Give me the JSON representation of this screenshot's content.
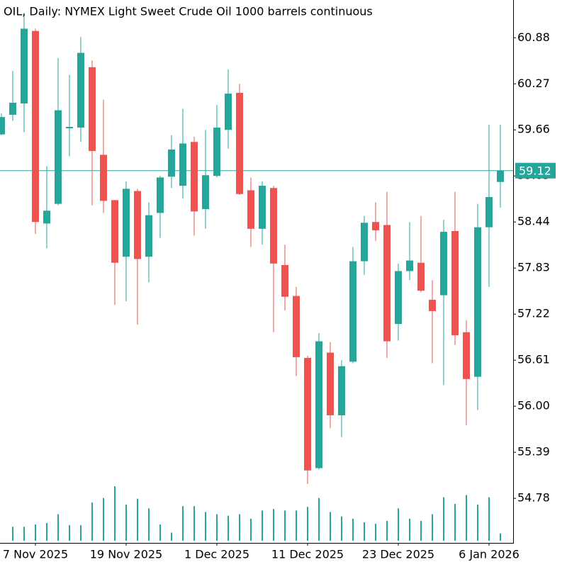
{
  "chart_data": {
    "type": "candlestick",
    "title": "OIL, Daily:  NYMEX Light Sweet Crude Oil 1000 barrels continuous",
    "categories": [
      null,
      null,
      null,
      "7 Nov 2025",
      null,
      null,
      null,
      null,
      null,
      null,
      null,
      "19 Nov 2025",
      null,
      null,
      null,
      null,
      null,
      null,
      null,
      "1 Dec 2025",
      null,
      null,
      null,
      null,
      null,
      null,
      null,
      "11 Dec 2025",
      null,
      null,
      null,
      null,
      null,
      null,
      null,
      "23 Dec 2025",
      null,
      null,
      null,
      null,
      null,
      null,
      null,
      "6 Jan 2026",
      null
    ],
    "open": [
      59.6,
      59.86,
      60.01,
      60.97,
      58.42,
      58.68,
      59.68,
      59.69,
      60.49,
      59.33,
      58.73,
      57.98,
      58.85,
      57.98,
      58.56,
      59.04,
      58.92,
      59.5,
      58.61,
      59.05,
      59.66,
      60.15,
      58.86,
      58.35,
      58.89,
      57.87,
      57.46,
      56.64,
      55.18,
      56.71,
      55.88,
      56.59,
      57.92,
      58.44,
      58.4,
      57.09,
      57.79,
      57.9,
      57.41,
      57.47,
      58.32,
      56.98,
      56.39,
      58.37,
      58.97
    ],
    "high": [
      59.88,
      60.44,
      61.21,
      61.0,
      59.18,
      60.61,
      60.39,
      60.89,
      60.58,
      60.06,
      58.73,
      58.98,
      58.88,
      58.7,
      59.05,
      59.59,
      59.94,
      59.57,
      59.66,
      59.99,
      60.46,
      60.27,
      59.03,
      58.98,
      58.92,
      58.14,
      57.58,
      56.67,
      56.97,
      56.85,
      56.61,
      58.11,
      58.52,
      58.7,
      58.84,
      57.89,
      58.44,
      58.52,
      57.67,
      58.47,
      58.84,
      57.14,
      58.68,
      59.73,
      59.73
    ],
    "low": [
      59.59,
      59.78,
      59.63,
      58.28,
      58.09,
      58.66,
      59.31,
      59.5,
      58.66,
      58.56,
      57.34,
      57.39,
      57.08,
      57.64,
      58.23,
      58.89,
      58.75,
      58.26,
      58.35,
      59.03,
      59.41,
      58.8,
      58.11,
      58.14,
      56.98,
      57.27,
      56.4,
      54.97,
      55.16,
      55.71,
      55.59,
      56.57,
      57.74,
      58.19,
      56.64,
      56.87,
      57.67,
      57.51,
      56.57,
      56.28,
      56.81,
      55.75,
      55.95,
      57.58,
      58.63
    ],
    "close": [
      59.83,
      60.02,
      61.0,
      58.44,
      58.59,
      59.92,
      59.7,
      60.68,
      59.38,
      58.72,
      57.9,
      58.88,
      57.95,
      58.53,
      59.03,
      59.4,
      59.48,
      58.58,
      59.06,
      59.69,
      60.14,
      58.81,
      58.35,
      58.92,
      57.89,
      57.45,
      56.65,
      55.15,
      56.86,
      55.88,
      56.53,
      57.92,
      58.43,
      58.33,
      56.86,
      57.79,
      57.93,
      57.53,
      57.26,
      58.31,
      56.94,
      56.36,
      58.37,
      58.77,
      59.12
    ],
    "volume": [
      null,
      19,
      19,
      22,
      24,
      36,
      21,
      21,
      52,
      58,
      74,
      49,
      57,
      44,
      22,
      11,
      47,
      47,
      39,
      36,
      34,
      36,
      30,
      41,
      43,
      41,
      41,
      46,
      58,
      39,
      33,
      30,
      25,
      23,
      27,
      44,
      30,
      27,
      36,
      59,
      50,
      62,
      49,
      59,
      10
    ],
    "up_color": "#26a69a",
    "down_color": "#ef5350",
    "volume_color": "#26a69a",
    "ylim": [
      54.19,
      61.38
    ],
    "yticks": [
      60.88,
      60.27,
      59.66,
      59.05,
      58.44,
      57.83,
      57.22,
      56.61,
      {
        "value": 56,
        "label": "56.00"
      },
      55.39,
      54.78
    ],
    "last_price": 59.12
  }
}
